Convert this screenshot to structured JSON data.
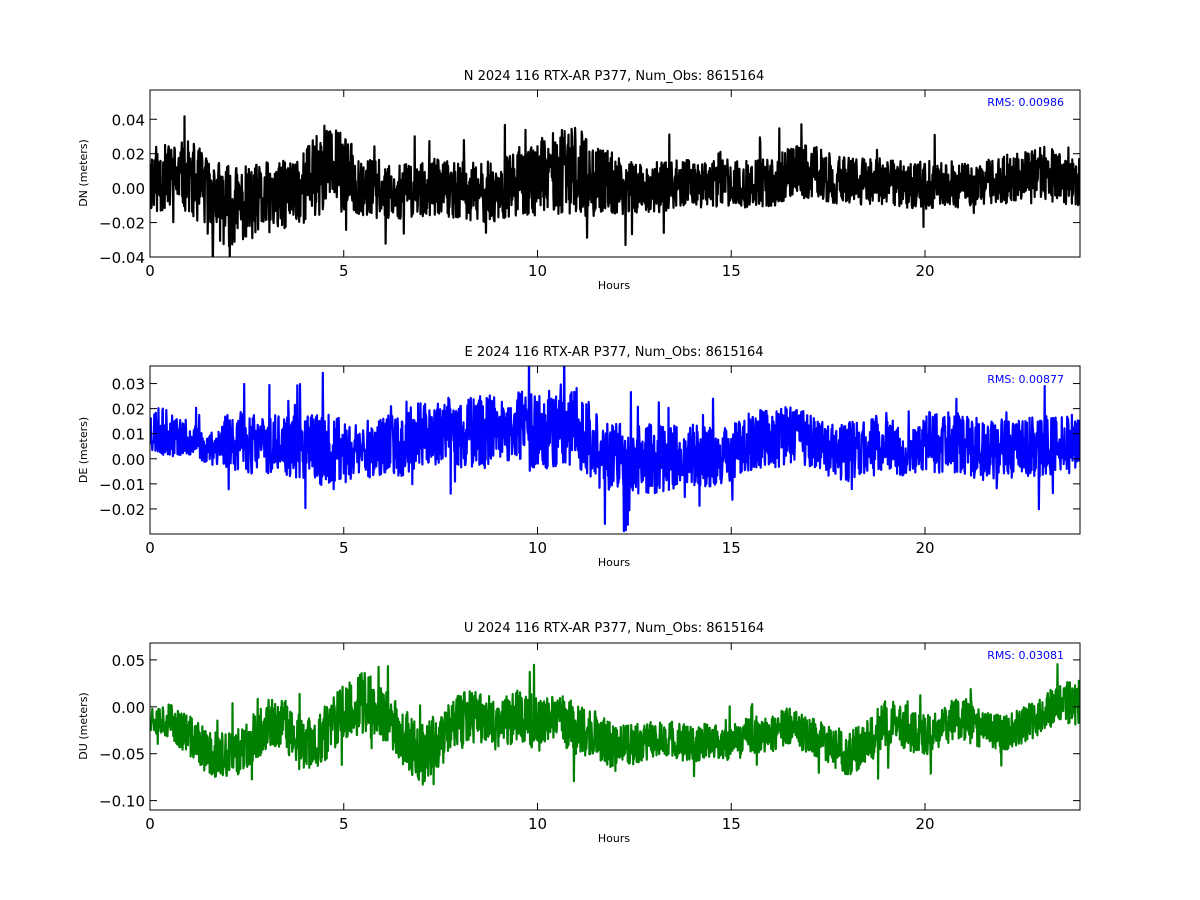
{
  "chart_data": [
    {
      "type": "line",
      "title": "N 2024 116 RTX-AR  P377, Num_Obs: 8615164",
      "xlabel": "Hours",
      "ylabel": "DN (meters)",
      "xlim": [
        0,
        24
      ],
      "ylim": [
        -0.04,
        0.057
      ],
      "xticks": [
        0,
        5,
        10,
        15,
        20
      ],
      "xtick_labels": [
        "0",
        "5",
        "10",
        "15",
        "20"
      ],
      "yticks": [
        -0.04,
        -0.02,
        0.0,
        0.02,
        0.04
      ],
      "ytick_labels": [
        "−0.04",
        "−0.02",
        "0.00",
        "0.02",
        "0.04"
      ],
      "annotation": "RMS:  0.00986",
      "grid": false,
      "series": [
        {
          "color": "#000000",
          "x": [
            0,
            0.5,
            1.0,
            1.5,
            2.0,
            2.5,
            3.0,
            3.5,
            4.0,
            4.5,
            5.0,
            5.5,
            6.0,
            6.5,
            7.0,
            7.5,
            8.0,
            8.5,
            9.0,
            9.5,
            10.0,
            10.5,
            11.0,
            11.5,
            12.0,
            12.5,
            13.0,
            13.5,
            14.0,
            14.5,
            15.0,
            15.5,
            16.0,
            16.5,
            17.0,
            17.5,
            18.0,
            18.5,
            19.0,
            19.5,
            20.0,
            20.5,
            21.0,
            21.5,
            22.0,
            22.5,
            23.0,
            23.5,
            24.0
          ],
          "y": [
            0.005,
            0.006,
            0.007,
            -0.004,
            -0.01,
            -0.009,
            -0.006,
            -0.004,
            0.002,
            0.012,
            0.008,
            0.001,
            -0.001,
            -0.002,
            -0.001,
            0.001,
            -0.002,
            -0.003,
            -0.002,
            0.004,
            0.006,
            0.009,
            0.01,
            0.004,
            0.002,
            0.001,
            0.0,
            0.002,
            0.003,
            0.002,
            0.003,
            0.002,
            0.003,
            0.008,
            0.01,
            0.006,
            0.004,
            0.004,
            0.003,
            0.002,
            0.002,
            0.002,
            0.002,
            0.003,
            0.005,
            0.006,
            0.008,
            0.006,
            0.004
          ],
          "envelope": [
            0.02,
            0.02,
            0.021,
            0.024,
            0.024,
            0.022,
            0.021,
            0.02,
            0.022,
            0.026,
            0.023,
            0.018,
            0.017,
            0.016,
            0.016,
            0.017,
            0.017,
            0.018,
            0.018,
            0.02,
            0.022,
            0.024,
            0.026,
            0.021,
            0.018,
            0.016,
            0.015,
            0.014,
            0.014,
            0.014,
            0.014,
            0.014,
            0.014,
            0.016,
            0.017,
            0.015,
            0.014,
            0.014,
            0.014,
            0.014,
            0.014,
            0.014,
            0.013,
            0.013,
            0.014,
            0.015,
            0.017,
            0.015,
            0.014
          ]
        }
      ]
    },
    {
      "type": "line",
      "title": "E 2024 116 RTX-AR  P377, Num_Obs: 8615164",
      "xlabel": "Hours",
      "ylabel": "DE (meters)",
      "xlim": [
        0,
        24
      ],
      "ylim": [
        -0.03,
        0.037
      ],
      "xticks": [
        0,
        5,
        10,
        15,
        20
      ],
      "xtick_labels": [
        "0",
        "5",
        "10",
        "15",
        "20"
      ],
      "yticks": [
        -0.02,
        -0.01,
        0.0,
        0.01,
        0.02,
        0.03
      ],
      "ytick_labels": [
        "−0.02",
        "−0.01",
        "0.00",
        "0.01",
        "0.02",
        "0.03"
      ],
      "annotation": "RMS:  0.00877",
      "grid": false,
      "series": [
        {
          "color": "#0000ff",
          "x": [
            0,
            0.5,
            1.0,
            1.5,
            2.0,
            2.5,
            3.0,
            3.5,
            4.0,
            4.5,
            5.0,
            5.5,
            6.0,
            6.5,
            7.0,
            7.5,
            8.0,
            8.5,
            9.0,
            9.5,
            10.0,
            10.5,
            11.0,
            11.5,
            12.0,
            12.5,
            13.0,
            13.5,
            14.0,
            14.5,
            15.0,
            15.5,
            16.0,
            16.5,
            17.0,
            17.5,
            18.0,
            18.5,
            19.0,
            19.5,
            20.0,
            20.5,
            21.0,
            21.5,
            22.0,
            22.5,
            23.0,
            23.5,
            24.0
          ],
          "y": [
            0.012,
            0.01,
            0.008,
            0.004,
            0.008,
            0.006,
            0.006,
            0.005,
            0.005,
            0.002,
            0.003,
            0.004,
            0.005,
            0.006,
            0.01,
            0.011,
            0.01,
            0.011,
            0.01,
            0.011,
            0.012,
            0.013,
            0.014,
            0.003,
            0.001,
            0.0,
            0.0,
            0.001,
            0.001,
            0.001,
            0.002,
            0.007,
            0.008,
            0.009,
            0.008,
            0.004,
            0.003,
            0.004,
            0.007,
            0.0,
            0.007,
            0.007,
            0.006,
            0.003,
            0.004,
            0.004,
            0.005,
            0.005,
            0.006
          ],
          "envelope": [
            0.01,
            0.009,
            0.007,
            0.006,
            0.012,
            0.012,
            0.012,
            0.012,
            0.013,
            0.016,
            0.014,
            0.012,
            0.012,
            0.013,
            0.013,
            0.014,
            0.014,
            0.015,
            0.015,
            0.016,
            0.017,
            0.017,
            0.017,
            0.015,
            0.014,
            0.014,
            0.014,
            0.013,
            0.013,
            0.012,
            0.011,
            0.012,
            0.012,
            0.012,
            0.011,
            0.011,
            0.012,
            0.012,
            0.012,
            0.008,
            0.012,
            0.013,
            0.013,
            0.012,
            0.012,
            0.012,
            0.012,
            0.012,
            0.012
          ]
        }
      ]
    },
    {
      "type": "line",
      "title": "U 2024 116 RTX-AR  P377, Num_Obs: 8615164",
      "xlabel": "Hours",
      "ylabel": "DU (meters)",
      "xlim": [
        0,
        24
      ],
      "ylim": [
        -0.11,
        0.068
      ],
      "xticks": [
        0,
        5,
        10,
        15,
        20
      ],
      "xtick_labels": [
        "0",
        "5",
        "10",
        "15",
        "20"
      ],
      "yticks": [
        -0.1,
        -0.05,
        0.0,
        0.05
      ],
      "ytick_labels": [
        "−0.10",
        "−0.05",
        "0.00",
        "0.05"
      ],
      "annotation": "RMS:  0.03081",
      "grid": false,
      "series": [
        {
          "color": "#008000",
          "x": [
            0,
            0.5,
            1.0,
            1.5,
            2.0,
            2.5,
            3.0,
            3.5,
            4.0,
            4.5,
            5.0,
            5.5,
            6.0,
            6.5,
            7.0,
            7.5,
            8.0,
            8.5,
            9.0,
            9.5,
            10.0,
            10.5,
            11.0,
            11.5,
            12.0,
            12.5,
            13.0,
            13.5,
            14.0,
            14.5,
            15.0,
            15.5,
            16.0,
            16.5,
            17.0,
            17.5,
            18.0,
            18.5,
            19.0,
            19.5,
            20.0,
            20.5,
            21.0,
            21.5,
            22.0,
            22.5,
            23.0,
            23.5,
            24.0
          ],
          "y": [
            -0.01,
            -0.015,
            -0.03,
            -0.05,
            -0.055,
            -0.04,
            -0.02,
            -0.02,
            -0.045,
            -0.03,
            -0.005,
            0.005,
            -0.01,
            -0.03,
            -0.05,
            -0.035,
            -0.015,
            -0.01,
            -0.02,
            -0.005,
            -0.02,
            -0.01,
            -0.025,
            -0.03,
            -0.045,
            -0.04,
            -0.035,
            -0.035,
            -0.04,
            -0.035,
            -0.04,
            -0.03,
            -0.03,
            -0.02,
            -0.03,
            -0.04,
            -0.05,
            -0.04,
            -0.015,
            -0.025,
            -0.03,
            -0.02,
            -0.01,
            -0.025,
            -0.03,
            -0.02,
            -0.01,
            0.005,
            0.005
          ],
          "envelope": [
            0.016,
            0.02,
            0.022,
            0.025,
            0.027,
            0.025,
            0.028,
            0.027,
            0.03,
            0.03,
            0.03,
            0.035,
            0.03,
            0.03,
            0.035,
            0.03,
            0.03,
            0.028,
            0.028,
            0.03,
            0.03,
            0.028,
            0.028,
            0.025,
            0.025,
            0.022,
            0.02,
            0.02,
            0.02,
            0.018,
            0.02,
            0.02,
            0.02,
            0.02,
            0.02,
            0.02,
            0.025,
            0.025,
            0.025,
            0.022,
            0.022,
            0.022,
            0.025,
            0.022,
            0.02,
            0.02,
            0.02,
            0.022,
            0.025
          ]
        }
      ]
    }
  ]
}
